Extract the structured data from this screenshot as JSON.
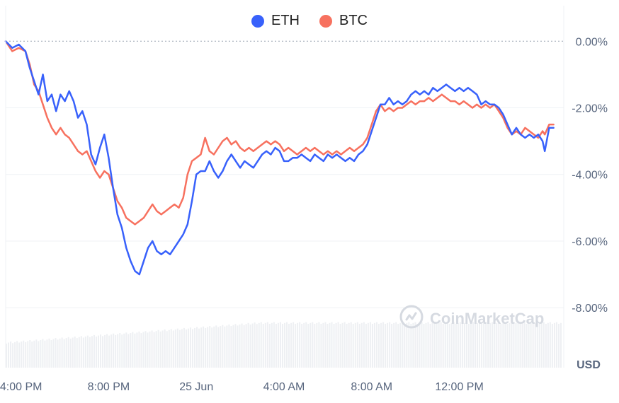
{
  "chart_data": {
    "type": "line",
    "legend_position": "top-center",
    "grid": true,
    "y_unit": "%",
    "ylim": [
      -9.8,
      0.6
    ],
    "currency_label": "USD",
    "watermark": "CoinMarketCap",
    "y_ticks": [
      {
        "value": 0,
        "label": "0.00%"
      },
      {
        "value": -2,
        "label": "-2.00%"
      },
      {
        "value": -4,
        "label": "-4.00%"
      },
      {
        "value": -6,
        "label": "-6.00%"
      },
      {
        "value": -8,
        "label": "-8.00%"
      }
    ],
    "x_ticks": [
      {
        "t": 0.7,
        "label": "4:00 PM"
      },
      {
        "t": 4.7,
        "label": "8:00 PM"
      },
      {
        "t": 8.7,
        "label": "25 Jun"
      },
      {
        "t": 12.7,
        "label": "4:00 AM"
      },
      {
        "t": 16.7,
        "label": "8:00 AM"
      },
      {
        "t": 20.7,
        "label": "12:00 PM"
      }
    ],
    "x_range_hours": [
      0.0,
      25.4
    ],
    "series": [
      {
        "name": "ETH",
        "color": "#3861fb",
        "points": [
          [
            0.0,
            0.0
          ],
          [
            0.3,
            -0.2
          ],
          [
            0.6,
            -0.1
          ],
          [
            0.9,
            -0.3
          ],
          [
            1.1,
            -0.8
          ],
          [
            1.3,
            -1.2
          ],
          [
            1.5,
            -1.6
          ],
          [
            1.7,
            -1.0
          ],
          [
            1.9,
            -1.8
          ],
          [
            2.1,
            -1.6
          ],
          [
            2.3,
            -2.1
          ],
          [
            2.5,
            -1.6
          ],
          [
            2.7,
            -1.8
          ],
          [
            2.9,
            -1.5
          ],
          [
            3.1,
            -1.8
          ],
          [
            3.3,
            -2.3
          ],
          [
            3.5,
            -2.1
          ],
          [
            3.7,
            -2.5
          ],
          [
            3.9,
            -3.4
          ],
          [
            4.1,
            -3.7
          ],
          [
            4.3,
            -3.2
          ],
          [
            4.5,
            -2.8
          ],
          [
            4.7,
            -3.5
          ],
          [
            4.9,
            -4.4
          ],
          [
            5.1,
            -5.2
          ],
          [
            5.3,
            -5.6
          ],
          [
            5.5,
            -6.2
          ],
          [
            5.7,
            -6.6
          ],
          [
            5.9,
            -6.9
          ],
          [
            6.1,
            -7.0
          ],
          [
            6.3,
            -6.6
          ],
          [
            6.5,
            -6.2
          ],
          [
            6.7,
            -6.0
          ],
          [
            6.9,
            -6.3
          ],
          [
            7.1,
            -6.4
          ],
          [
            7.3,
            -6.3
          ],
          [
            7.5,
            -6.4
          ],
          [
            7.7,
            -6.2
          ],
          [
            7.9,
            -6.0
          ],
          [
            8.1,
            -5.8
          ],
          [
            8.3,
            -5.5
          ],
          [
            8.5,
            -4.8
          ],
          [
            8.7,
            -4.0
          ],
          [
            8.9,
            -3.9
          ],
          [
            9.1,
            -3.9
          ],
          [
            9.3,
            -3.6
          ],
          [
            9.5,
            -3.9
          ],
          [
            9.7,
            -4.1
          ],
          [
            9.9,
            -3.9
          ],
          [
            10.1,
            -3.6
          ],
          [
            10.3,
            -3.4
          ],
          [
            10.5,
            -3.6
          ],
          [
            10.7,
            -3.8
          ],
          [
            10.9,
            -3.6
          ],
          [
            11.1,
            -3.7
          ],
          [
            11.3,
            -3.8
          ],
          [
            11.5,
            -3.6
          ],
          [
            11.7,
            -3.4
          ],
          [
            11.9,
            -3.3
          ],
          [
            12.1,
            -3.4
          ],
          [
            12.3,
            -3.2
          ],
          [
            12.5,
            -3.3
          ],
          [
            12.7,
            -3.6
          ],
          [
            12.9,
            -3.6
          ],
          [
            13.1,
            -3.5
          ],
          [
            13.3,
            -3.5
          ],
          [
            13.5,
            -3.4
          ],
          [
            13.7,
            -3.5
          ],
          [
            13.9,
            -3.6
          ],
          [
            14.1,
            -3.4
          ],
          [
            14.3,
            -3.5
          ],
          [
            14.5,
            -3.6
          ],
          [
            14.7,
            -3.4
          ],
          [
            14.9,
            -3.5
          ],
          [
            15.1,
            -3.4
          ],
          [
            15.3,
            -3.5
          ],
          [
            15.5,
            -3.6
          ],
          [
            15.7,
            -3.5
          ],
          [
            15.9,
            -3.6
          ],
          [
            16.1,
            -3.4
          ],
          [
            16.3,
            -3.3
          ],
          [
            16.5,
            -3.1
          ],
          [
            16.7,
            -2.7
          ],
          [
            16.9,
            -2.3
          ],
          [
            17.1,
            -1.9
          ],
          [
            17.3,
            -1.9
          ],
          [
            17.5,
            -1.7
          ],
          [
            17.7,
            -1.9
          ],
          [
            17.9,
            -1.8
          ],
          [
            18.1,
            -1.9
          ],
          [
            18.3,
            -1.8
          ],
          [
            18.5,
            -1.6
          ],
          [
            18.7,
            -1.5
          ],
          [
            18.9,
            -1.6
          ],
          [
            19.1,
            -1.5
          ],
          [
            19.3,
            -1.6
          ],
          [
            19.5,
            -1.4
          ],
          [
            19.7,
            -1.5
          ],
          [
            19.9,
            -1.4
          ],
          [
            20.1,
            -1.3
          ],
          [
            20.3,
            -1.4
          ],
          [
            20.5,
            -1.5
          ],
          [
            20.7,
            -1.4
          ],
          [
            20.9,
            -1.5
          ],
          [
            21.1,
            -1.4
          ],
          [
            21.3,
            -1.5
          ],
          [
            21.5,
            -1.6
          ],
          [
            21.7,
            -1.9
          ],
          [
            21.9,
            -1.8
          ],
          [
            22.1,
            -1.9
          ],
          [
            22.3,
            -1.9
          ],
          [
            22.5,
            -2.0
          ],
          [
            22.7,
            -2.2
          ],
          [
            22.9,
            -2.5
          ],
          [
            23.1,
            -2.8
          ],
          [
            23.3,
            -2.6
          ],
          [
            23.5,
            -2.8
          ],
          [
            23.7,
            -2.9
          ],
          [
            23.9,
            -2.8
          ],
          [
            24.1,
            -2.9
          ],
          [
            24.3,
            -2.8
          ],
          [
            24.5,
            -3.0
          ],
          [
            24.6,
            -3.3
          ],
          [
            24.8,
            -2.6
          ],
          [
            25.0,
            -2.6
          ]
        ]
      },
      {
        "name": "BTC",
        "color": "#f7715f",
        "points": [
          [
            0.0,
            0.0
          ],
          [
            0.3,
            -0.3
          ],
          [
            0.6,
            -0.2
          ],
          [
            0.9,
            -0.3
          ],
          [
            1.1,
            -0.7
          ],
          [
            1.3,
            -1.3
          ],
          [
            1.5,
            -1.5
          ],
          [
            1.7,
            -1.9
          ],
          [
            1.9,
            -2.3
          ],
          [
            2.1,
            -2.6
          ],
          [
            2.3,
            -2.8
          ],
          [
            2.5,
            -2.6
          ],
          [
            2.7,
            -2.8
          ],
          [
            2.9,
            -2.9
          ],
          [
            3.1,
            -3.1
          ],
          [
            3.3,
            -3.3
          ],
          [
            3.5,
            -3.4
          ],
          [
            3.7,
            -3.3
          ],
          [
            3.9,
            -3.6
          ],
          [
            4.1,
            -3.9
          ],
          [
            4.3,
            -4.1
          ],
          [
            4.5,
            -3.9
          ],
          [
            4.7,
            -4.0
          ],
          [
            4.9,
            -4.4
          ],
          [
            5.1,
            -4.8
          ],
          [
            5.3,
            -5.0
          ],
          [
            5.5,
            -5.3
          ],
          [
            5.7,
            -5.4
          ],
          [
            5.9,
            -5.5
          ],
          [
            6.1,
            -5.4
          ],
          [
            6.3,
            -5.3
          ],
          [
            6.5,
            -5.1
          ],
          [
            6.7,
            -4.9
          ],
          [
            6.9,
            -5.1
          ],
          [
            7.1,
            -5.2
          ],
          [
            7.3,
            -5.1
          ],
          [
            7.5,
            -5.0
          ],
          [
            7.7,
            -4.9
          ],
          [
            7.9,
            -5.0
          ],
          [
            8.1,
            -4.7
          ],
          [
            8.3,
            -4.0
          ],
          [
            8.5,
            -3.6
          ],
          [
            8.7,
            -3.5
          ],
          [
            8.9,
            -3.4
          ],
          [
            9.1,
            -2.9
          ],
          [
            9.3,
            -3.3
          ],
          [
            9.5,
            -3.4
          ],
          [
            9.7,
            -3.2
          ],
          [
            9.9,
            -3.0
          ],
          [
            10.1,
            -2.9
          ],
          [
            10.3,
            -3.1
          ],
          [
            10.5,
            -3.0
          ],
          [
            10.7,
            -3.2
          ],
          [
            10.9,
            -3.3
          ],
          [
            11.1,
            -3.2
          ],
          [
            11.3,
            -3.3
          ],
          [
            11.5,
            -3.2
          ],
          [
            11.7,
            -3.1
          ],
          [
            11.9,
            -3.0
          ],
          [
            12.1,
            -3.1
          ],
          [
            12.3,
            -3.0
          ],
          [
            12.5,
            -3.1
          ],
          [
            12.7,
            -3.3
          ],
          [
            12.9,
            -3.2
          ],
          [
            13.1,
            -3.3
          ],
          [
            13.3,
            -3.4
          ],
          [
            13.5,
            -3.3
          ],
          [
            13.7,
            -3.2
          ],
          [
            13.9,
            -3.3
          ],
          [
            14.1,
            -3.2
          ],
          [
            14.3,
            -3.3
          ],
          [
            14.5,
            -3.4
          ],
          [
            14.7,
            -3.3
          ],
          [
            14.9,
            -3.4
          ],
          [
            15.1,
            -3.3
          ],
          [
            15.3,
            -3.4
          ],
          [
            15.5,
            -3.3
          ],
          [
            15.7,
            -3.2
          ],
          [
            15.9,
            -3.3
          ],
          [
            16.1,
            -3.2
          ],
          [
            16.3,
            -3.1
          ],
          [
            16.5,
            -2.9
          ],
          [
            16.7,
            -2.5
          ],
          [
            16.9,
            -2.1
          ],
          [
            17.1,
            -1.9
          ],
          [
            17.3,
            -2.1
          ],
          [
            17.5,
            -2.0
          ],
          [
            17.7,
            -2.1
          ],
          [
            17.9,
            -2.0
          ],
          [
            18.1,
            -2.0
          ],
          [
            18.3,
            -1.9
          ],
          [
            18.5,
            -1.8
          ],
          [
            18.7,
            -1.9
          ],
          [
            18.9,
            -1.8
          ],
          [
            19.1,
            -1.8
          ],
          [
            19.3,
            -1.7
          ],
          [
            19.5,
            -1.8
          ],
          [
            19.7,
            -1.7
          ],
          [
            19.9,
            -1.6
          ],
          [
            20.1,
            -1.7
          ],
          [
            20.3,
            -1.8
          ],
          [
            20.5,
            -1.8
          ],
          [
            20.7,
            -1.9
          ],
          [
            20.9,
            -1.8
          ],
          [
            21.1,
            -1.9
          ],
          [
            21.3,
            -2.0
          ],
          [
            21.5,
            -1.9
          ],
          [
            21.7,
            -2.0
          ],
          [
            21.9,
            -1.9
          ],
          [
            22.1,
            -2.0
          ],
          [
            22.3,
            -1.9
          ],
          [
            22.5,
            -2.1
          ],
          [
            22.7,
            -2.3
          ],
          [
            22.9,
            -2.6
          ],
          [
            23.1,
            -2.8
          ],
          [
            23.3,
            -2.7
          ],
          [
            23.5,
            -2.8
          ],
          [
            23.7,
            -2.6
          ],
          [
            23.9,
            -2.7
          ],
          [
            24.1,
            -2.8
          ],
          [
            24.3,
            -2.9
          ],
          [
            24.5,
            -2.7
          ],
          [
            24.6,
            -2.8
          ],
          [
            24.8,
            -2.5
          ],
          [
            25.0,
            -2.5
          ]
        ]
      }
    ]
  }
}
